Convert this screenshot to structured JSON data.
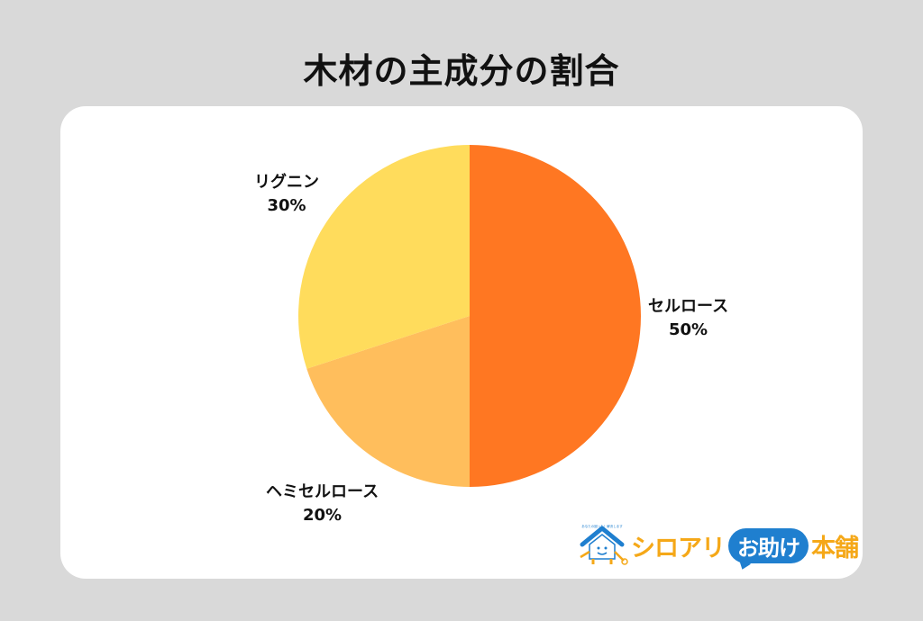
{
  "title": "木材の主成分の割合",
  "chart_data": {
    "type": "pie",
    "title": "木材の主成分の割合",
    "categories": [
      "セルロース",
      "ヘミセルロース",
      "リグニン"
    ],
    "values": [
      50,
      20,
      30
    ],
    "unit": "%",
    "colors": [
      "#ff7722",
      "#ffbe5c",
      "#ffdc5c"
    ],
    "start_angle_deg": 0,
    "direction": "clockwise",
    "legend": "none",
    "data_labels": [
      {
        "name": "セルロース",
        "value": "50%"
      },
      {
        "name": "ヘミセルロース",
        "value": "20%"
      },
      {
        "name": "リグニン",
        "value": "30%"
      }
    ]
  },
  "labels": {
    "cellulose": {
      "name": "セルロース",
      "value": "50%"
    },
    "hemicellulose": {
      "name": "ヘミセルロース",
      "value": "20%"
    },
    "lignin": {
      "name": "リグニン",
      "value": "30%"
    }
  },
  "logo": {
    "tagline": "あなたの困った！解決します",
    "text_part1": "シロアリ",
    "text_bubble": "お助け",
    "text_part2": "本舗",
    "colors": {
      "orange": "#f5a818",
      "blue": "#1f7fcf"
    }
  }
}
